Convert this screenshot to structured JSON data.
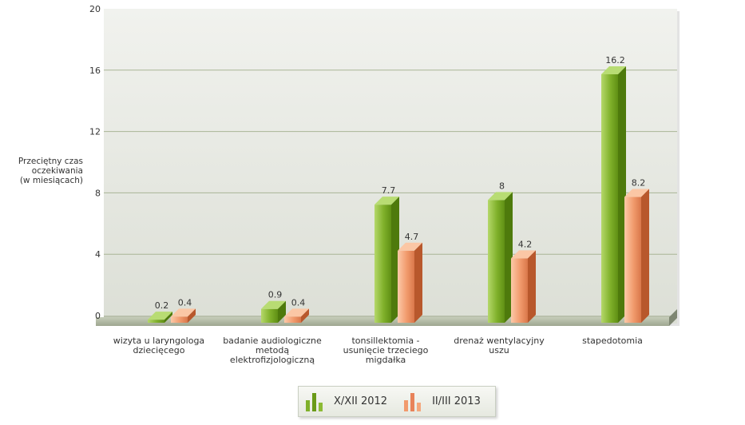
{
  "chart_data": {
    "type": "bar",
    "title": "",
    "ylabel_lines": [
      "Przeciętny czas",
      "oczekiwania",
      "(w miesiącach)"
    ],
    "xlabel": "",
    "ylim": [
      0,
      20
    ],
    "yticks": [
      0,
      4,
      8,
      12,
      16,
      20
    ],
    "grid": true,
    "legend_position": "bottom-center",
    "categories": [
      [
        "wizyta u laryngologa",
        "dziecięcego"
      ],
      [
        "badanie audiologiczne",
        "metodą",
        "elektrofizjologiczną"
      ],
      [
        "tonsillektomia -",
        "usunięcie trzeciego",
        "migdałka"
      ],
      [
        "drenaż wentylacyjny",
        "uszu"
      ],
      [
        "stapedotomia"
      ]
    ],
    "series": [
      {
        "name": "X/XII 2012",
        "values": [
          0.2,
          0.9,
          7.7,
          8,
          16.2
        ],
        "color": "#6a9a18"
      },
      {
        "name": "II/III 2013",
        "values": [
          0.4,
          0.4,
          4.7,
          4.2,
          8.2
        ],
        "color": "#e8835a"
      }
    ]
  }
}
